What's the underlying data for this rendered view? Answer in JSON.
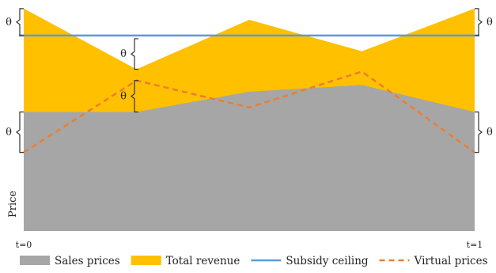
{
  "chart_data": {
    "type": "area",
    "ylabel": "Price",
    "x_ticks": [
      "t=0",
      "t=1"
    ],
    "theta": "θ",
    "x": [
      0,
      0.25,
      0.5,
      0.75,
      1
    ],
    "ylim": [
      0,
      1
    ],
    "series": [
      {
        "name": "Sales prices",
        "type": "area",
        "color": "#a6a6a6",
        "values": [
          0.53,
          0.53,
          0.62,
          0.65,
          0.53
        ]
      },
      {
        "name": "Total revenue",
        "type": "area",
        "color": "#ffc000",
        "values": [
          0.99,
          0.72,
          0.94,
          0.8,
          0.99
        ]
      },
      {
        "name": "Subsidy ceiling",
        "type": "line",
        "color": "#5b9bd5",
        "values": [
          0.87,
          0.87,
          0.87,
          0.87,
          0.87
        ]
      },
      {
        "name": "Virtual prices",
        "type": "dashed-line",
        "color": "#ed7d31",
        "values": [
          0.35,
          0.67,
          0.55,
          0.71,
          0.35
        ]
      }
    ]
  }
}
